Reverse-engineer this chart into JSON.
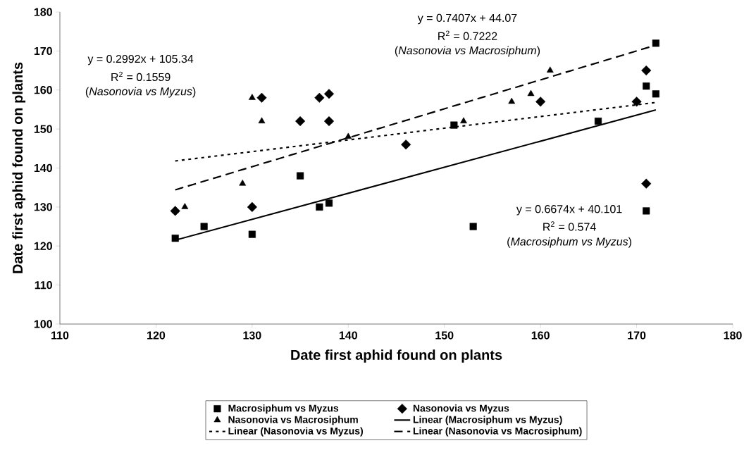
{
  "chart_data": {
    "type": "scatter",
    "xlabel": "Date first aphid found on plants",
    "ylabel": "Date first aphid found on plants",
    "xlim": [
      110,
      180
    ],
    "xticks": [
      110,
      120,
      130,
      140,
      150,
      160,
      170,
      180
    ],
    "ylim": [
      100,
      180
    ],
    "yticks": [
      100,
      110,
      120,
      130,
      140,
      150,
      160,
      170,
      180
    ],
    "grid": false,
    "legend": "bottom",
    "series": [
      {
        "name": "Macrosiphum vs Myzus",
        "type": "scatter",
        "marker": "square",
        "color": "#000000",
        "x": [
          122,
          125,
          130,
          135,
          137,
          138,
          151,
          153,
          166,
          171,
          172,
          172,
          171
        ],
        "values": [
          122,
          125,
          123,
          138,
          130,
          131,
          151,
          125,
          152,
          161,
          159,
          172,
          129
        ]
      },
      {
        "name": "Nasonovia vs Myzus",
        "type": "scatter",
        "marker": "diamond",
        "color": "#000000",
        "x": [
          122,
          130,
          131,
          135,
          137,
          138,
          138,
          146,
          160,
          170,
          171,
          171
        ],
        "values": [
          129,
          130,
          158,
          152,
          158,
          159,
          152,
          146,
          157,
          157,
          165,
          136
        ]
      },
      {
        "name": "Nasonovia vs Macrosiphum",
        "type": "scatter",
        "marker": "triangle",
        "color": "#000000",
        "x": [
          122,
          123,
          129,
          130,
          131,
          138,
          140,
          152,
          157,
          159,
          161
        ],
        "values": [
          129,
          130,
          136,
          158,
          152,
          152,
          148,
          152,
          157,
          159,
          165
        ]
      },
      {
        "name": "Linear (Macrosiphum vs Myzus)",
        "type": "line",
        "line_style": "solid",
        "color": "#000000",
        "x": [
          122,
          172
        ],
        "values": [
          121.5,
          154.9
        ]
      },
      {
        "name": "Linear (Nasonovia vs Myzus)",
        "type": "line",
        "line_style": "dotted",
        "color": "#000000",
        "x": [
          122,
          172
        ],
        "values": [
          141.8,
          156.8
        ]
      },
      {
        "name": "Linear (Nasonovia vs Macrosiphum)",
        "type": "line",
        "line_style": "dashed",
        "color": "#000000",
        "x": [
          122,
          172
        ],
        "values": [
          134.4,
          171.5
        ]
      }
    ],
    "annotations": [
      "y = 0.7407x + 44.07",
      "R$^{2}$ = 0.7222",
      "(*Nasonovia vs Macrosiphum*)",
      "y = 0.2992x + 105.34",
      "R$^{2}$ = 0.1559",
      "(*Nasonovia vs Myzus*)",
      "y = 0.6674x + 40.101",
      "R$^{2}$ = 0.574",
      "(*Macrosiphum vs Myzus*)"
    ]
  }
}
